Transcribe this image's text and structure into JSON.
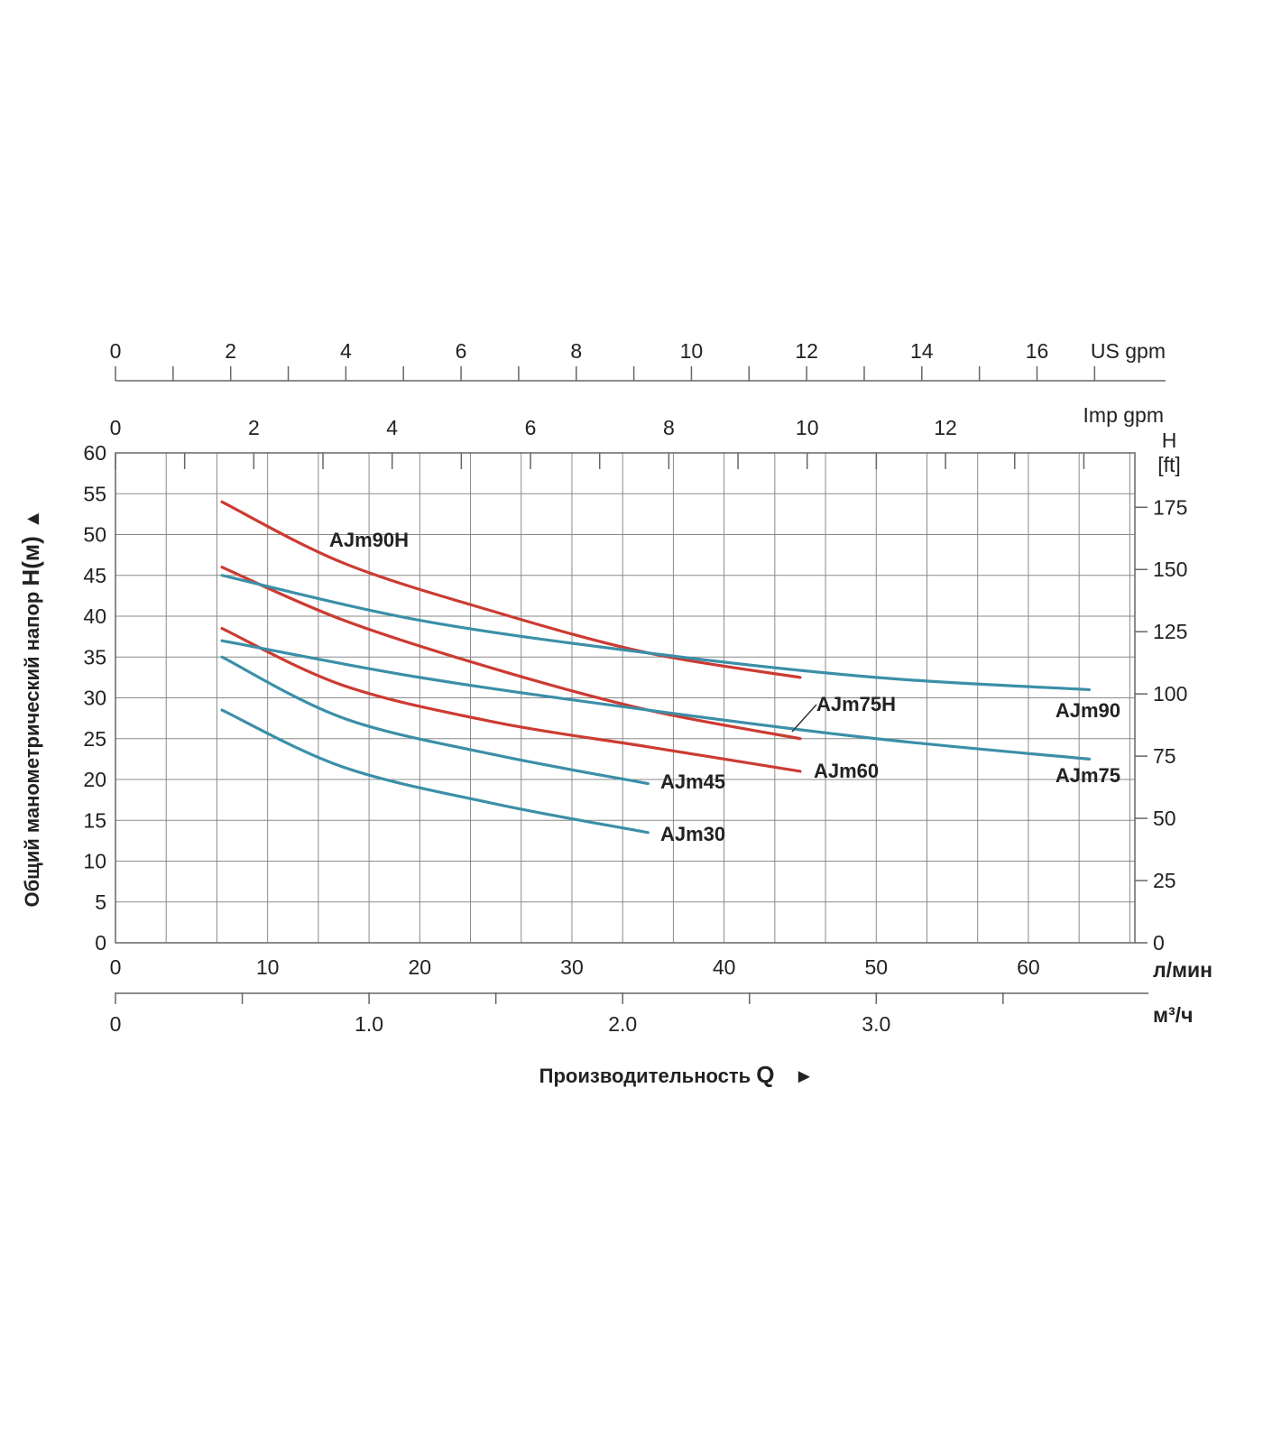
{
  "chart_data": {
    "type": "line",
    "x_primary": {
      "unit": "л/мин",
      "range": [
        0,
        67
      ],
      "tick_values": [
        0,
        10,
        20,
        30,
        40,
        50,
        60
      ],
      "tick_labels": [
        "0",
        "10",
        "20",
        "30",
        "40",
        "50",
        "60"
      ]
    },
    "x_m3h": {
      "unit": "м³/ч",
      "tick_values": [
        0,
        1.0,
        2.0,
        3.0
      ],
      "tick_labels": [
        "0",
        "1.0",
        "2.0",
        "3.0"
      ]
    },
    "x_us_gpm": {
      "unit": "US gpm",
      "tick_values": [
        0,
        2,
        4,
        6,
        8,
        10,
        12,
        14,
        16
      ],
      "tick_labels": [
        "0",
        "2",
        "4",
        "6",
        "8",
        "10",
        "12",
        "14",
        "16"
      ]
    },
    "x_imp_gpm": {
      "unit": "Imp gpm",
      "tick_values": [
        0,
        2,
        4,
        6,
        8,
        10,
        12
      ],
      "tick_labels": [
        "0",
        "2",
        "4",
        "6",
        "8",
        "10",
        "12"
      ]
    },
    "y_primary": {
      "range": [
        0,
        60
      ],
      "tick_values": [
        0,
        5,
        10,
        15,
        20,
        25,
        30,
        35,
        40,
        45,
        50,
        55,
        60
      ],
      "tick_labels": [
        "0",
        "5",
        "10",
        "15",
        "20",
        "25",
        "30",
        "35",
        "40",
        "45",
        "50",
        "55",
        "60"
      ]
    },
    "y_ft": {
      "unit_line1": "H",
      "unit_line2": "[ft]",
      "tick_values": [
        0,
        25,
        50,
        75,
        100,
        125,
        150,
        175
      ],
      "tick_labels": [
        "0",
        "25",
        "50",
        "75",
        "100",
        "125",
        "150",
        "175"
      ]
    },
    "ylabel_text": "Общий манометрический напор ",
    "ylabel_symbol": "H(м)",
    "ylabel_arrow": "▲",
    "xlabel_text": "Производительность ",
    "xlabel_symbol": "Q",
    "xlabel_arrow": "►",
    "grid": true,
    "series": [
      {
        "name": "AJm90H",
        "color": "#cc3b32",
        "x": [
          7,
          15,
          25,
          35,
          45
        ],
        "y": [
          54,
          46.5,
          40.5,
          35.5,
          32.5
        ]
      },
      {
        "name": "AJm75H",
        "color": "#cc3b32",
        "x": [
          7,
          15,
          25,
          35,
          45
        ],
        "y": [
          46,
          39.5,
          33.5,
          28.5,
          25
        ]
      },
      {
        "name": "AJm60",
        "color": "#cc3b32",
        "x": [
          7,
          15,
          25,
          35,
          45
        ],
        "y": [
          38.5,
          31.5,
          27,
          24,
          21
        ]
      },
      {
        "name": "AJm90",
        "color": "#3b8fa8",
        "x": [
          7,
          20,
          35,
          50,
          64
        ],
        "y": [
          45,
          39.5,
          35.5,
          32.5,
          31
        ]
      },
      {
        "name": "AJm75",
        "color": "#3b8fa8",
        "x": [
          7,
          20,
          35,
          50,
          64
        ],
        "y": [
          37,
          32.5,
          28.5,
          25,
          22.5
        ]
      },
      {
        "name": "AJm45",
        "color": "#3b8fa8",
        "x": [
          7,
          15,
          25,
          35
        ],
        "y": [
          35,
          27.5,
          23,
          19.5
        ]
      },
      {
        "name": "AJm30",
        "color": "#3b8fa8",
        "x": [
          7,
          15,
          25,
          35
        ],
        "y": [
          28.5,
          21.5,
          17,
          13.5
        ]
      }
    ]
  }
}
